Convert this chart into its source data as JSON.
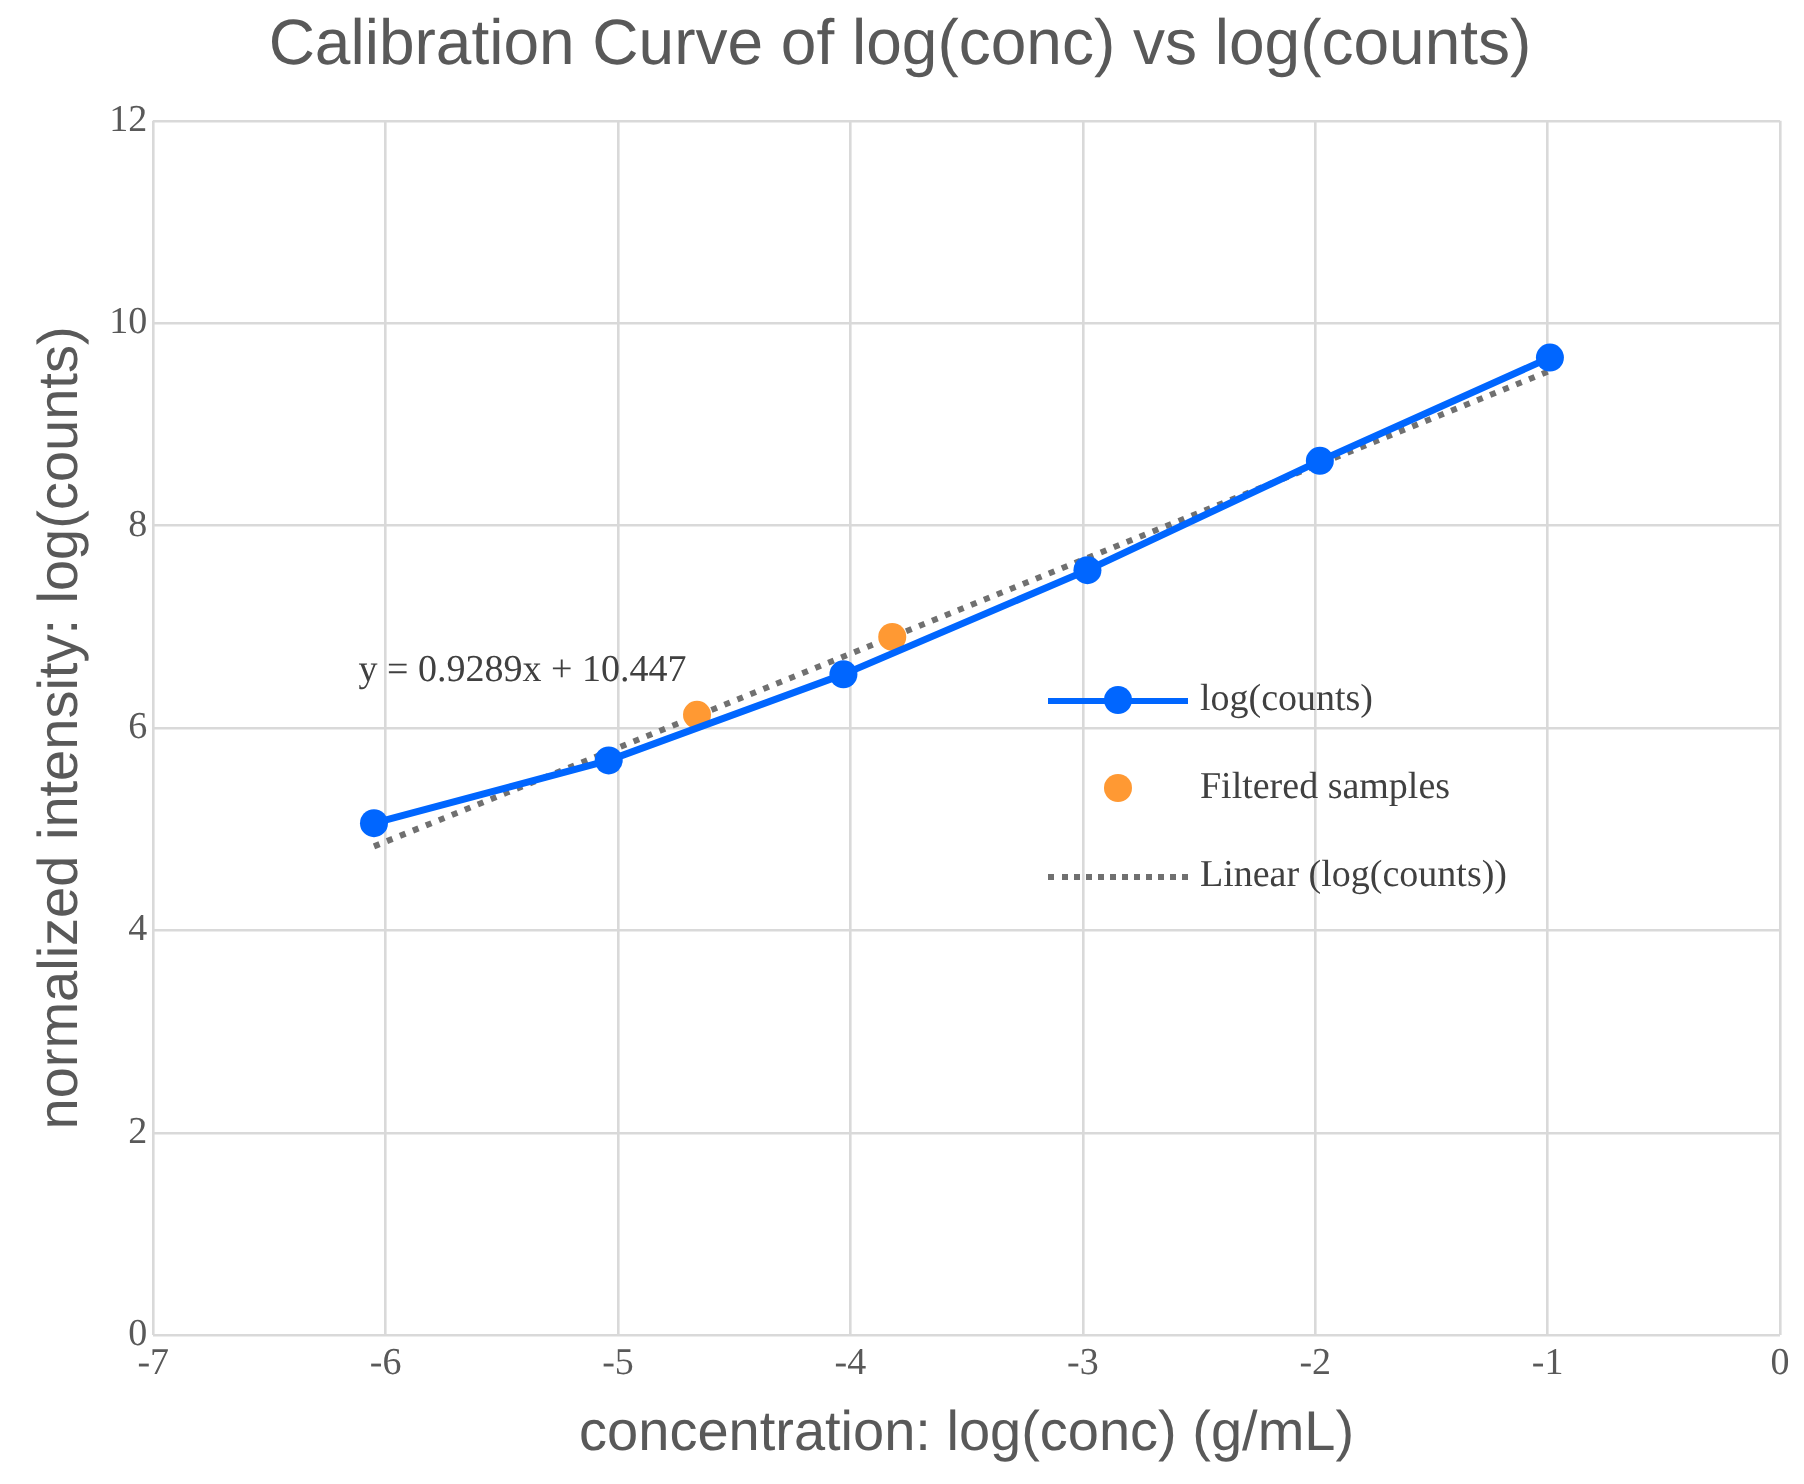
{
  "chart_data": {
    "type": "line",
    "title": "Calibration Curve of log(conc) vs log(counts)",
    "xlabel": "concentration: log(conc) (g/mL)",
    "ylabel": "normalized intensity: log(counts)",
    "xlim": [
      -7,
      0
    ],
    "xticks": [
      -7,
      -6,
      -5,
      -4,
      -3,
      -2,
      -1,
      0
    ],
    "ylim": [
      0,
      12
    ],
    "yticks": [
      0,
      2,
      4,
      6,
      8,
      10,
      12
    ],
    "grid": true,
    "legend": "right",
    "series": [
      {
        "name": "log(counts)",
        "color": "#0066ff",
        "marker": "circle",
        "line_style": "solid",
        "x": [
          -6.05,
          -5.04,
          -4.03,
          -2.98,
          -1.98,
          -0.99
        ],
        "values": [
          5.06,
          5.68,
          6.53,
          7.56,
          8.64,
          9.66
        ]
      },
      {
        "name": "Filtered samples",
        "type": "scatter",
        "color": "#ff9933",
        "marker": "circle",
        "x": [
          -4.66,
          -3.82
        ],
        "values": [
          6.13,
          6.9
        ]
      },
      {
        "name": "Linear (log(counts))",
        "color": "#707070",
        "marker": "none",
        "line_style": "dotted",
        "x": [
          -6.05,
          -0.99
        ],
        "values": [
          4.83,
          9.53
        ]
      }
    ],
    "annotations": [
      "y = 0.9289x + 10.447"
    ]
  }
}
